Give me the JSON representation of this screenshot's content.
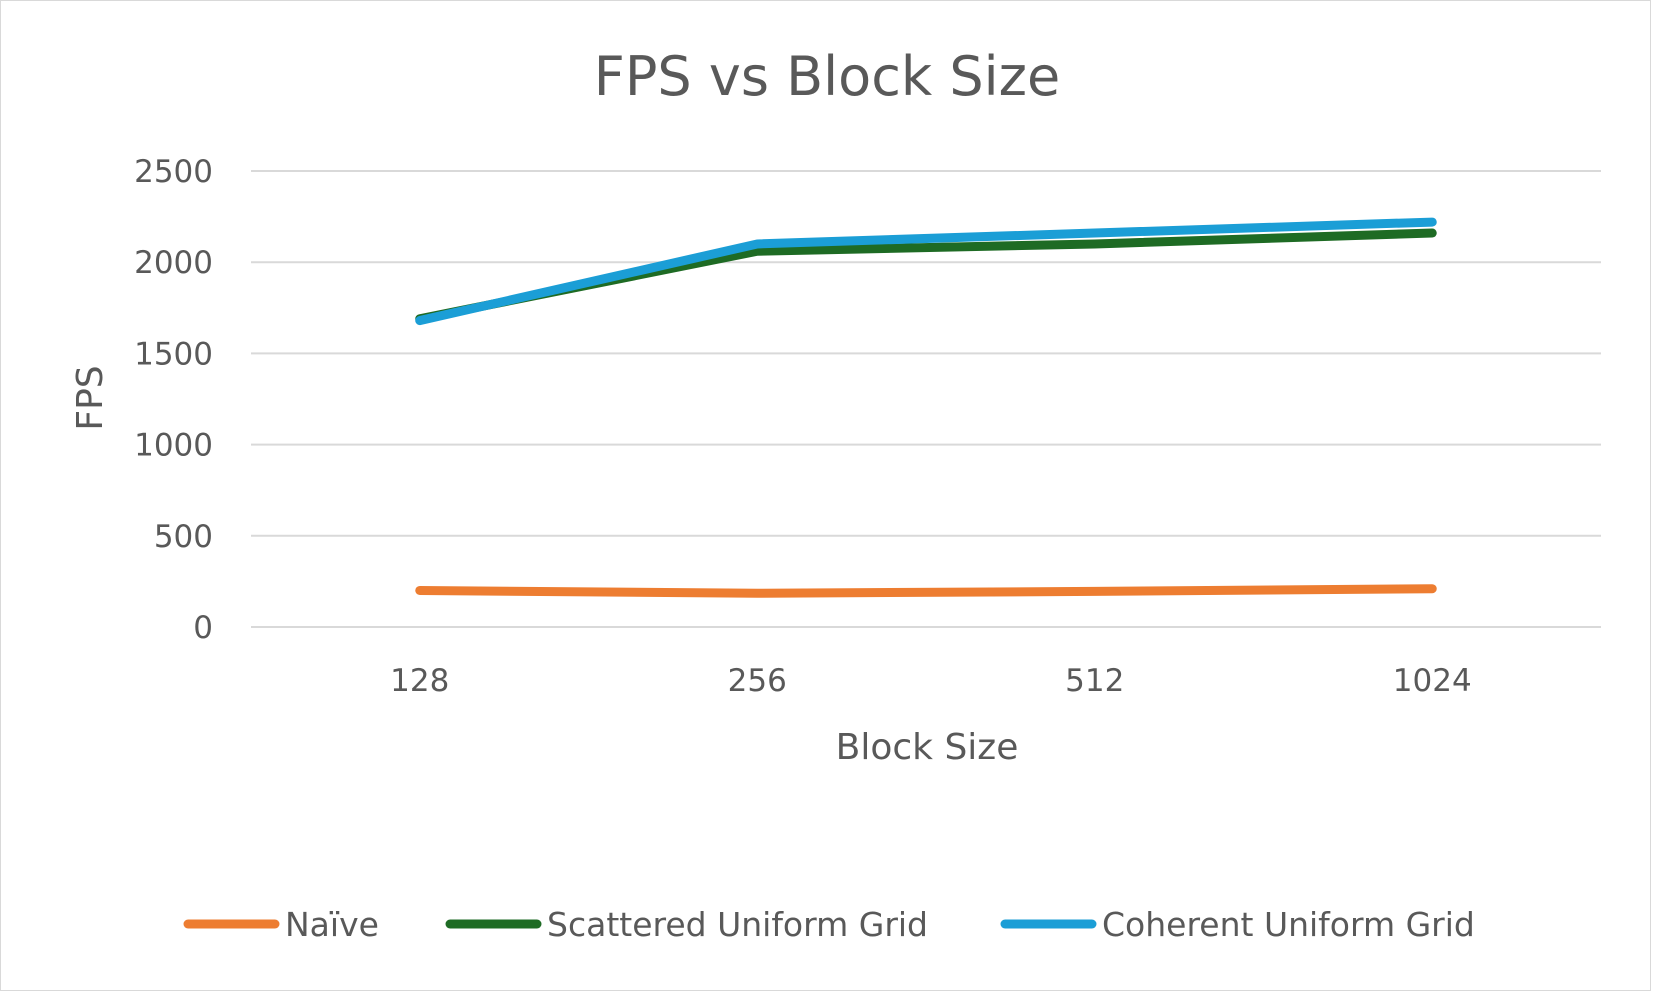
{
  "chart_data": {
    "type": "line",
    "title": "FPS vs Block Size",
    "xlabel": "Block Size",
    "ylabel": "FPS",
    "categories": [
      "128",
      "256",
      "512",
      "1024"
    ],
    "ylim": [
      0,
      2500
    ],
    "yticks": [
      0,
      500,
      1000,
      1500,
      2000,
      2500
    ],
    "grid": true,
    "legend_position": "bottom",
    "series": [
      {
        "name": "Naïve",
        "color": "#ed7d31",
        "values": [
          200,
          185,
          195,
          210
        ]
      },
      {
        "name": "Scattered Uniform Grid",
        "color": "#1e6b24",
        "values": [
          1690,
          2060,
          2100,
          2160
        ]
      },
      {
        "name": "Coherent Uniform Grid",
        "color": "#1b9ed6",
        "values": [
          1680,
          2100,
          2160,
          2220
        ]
      }
    ]
  }
}
